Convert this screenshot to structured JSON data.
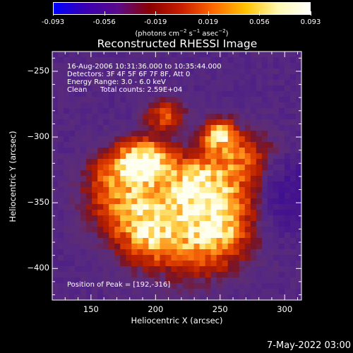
{
  "colorbar": {
    "ticks": [
      "-0.093",
      "-0.056",
      "-0.019",
      "0.019",
      "0.056",
      "0.093"
    ],
    "tick_values": [
      -0.093,
      -0.056,
      -0.019,
      0.019,
      0.056,
      0.093
    ],
    "units_prefix": "(photons cm",
    "units_exp1": "−2",
    "units_mid": " s",
    "units_exp2": "−1",
    "units_mid2": " asec",
    "units_exp3": "−2",
    "units_suffix": ")",
    "colors": [
      "#0000ff",
      "#3a00b0",
      "#5a0a8a",
      "#8a0000",
      "#c81e00",
      "#ff6a00",
      "#ffc400",
      "#fff8b0",
      "#ffffff"
    ]
  },
  "title": "Reconstructed RHESSI Image",
  "annotations": {
    "time_range": "16-Aug-2006 10:31:36.000 to 10:35:44.000",
    "detectors": "Detectors: 3F 4F 5F 6F 7F 8F, Att 0",
    "energy": "Energy Range: 3.0 - 6.0 keV",
    "clean": "Clean",
    "counts": "Total counts: 2.59E+04",
    "peak": "Position of Peak = [192,-316]"
  },
  "axes": {
    "xlabel": "Heliocentric X (arcsec)",
    "ylabel": "Heliocentric Y (arcsec)",
    "x_ticks": [
      "150",
      "200",
      "250",
      "300"
    ],
    "x_tick_values": [
      150,
      200,
      250,
      300
    ],
    "y_ticks": [
      "-250",
      "-300",
      "-350",
      "-400"
    ],
    "y_tick_values": [
      -250,
      -300,
      -350,
      -400
    ],
    "xlim": [
      120,
      313
    ],
    "ylim": [
      -424,
      -235
    ]
  },
  "footer": {
    "timestamp": "7-May-2022 03:00"
  }
}
